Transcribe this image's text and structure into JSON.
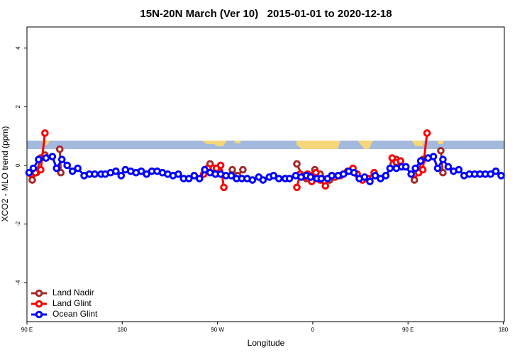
{
  "chart_data": {
    "type": "line",
    "title": "15N-20N March (Ver 10)   2015-01-01 to 2020-12-18",
    "x_label": "Longitude",
    "y_label": "XCO2 - MLO trend (ppm)",
    "xlim": [
      90,
      541
    ],
    "ylim": [
      -5.33,
      4.72
    ],
    "xticks": [
      {
        "value": 90,
        "label": "90 E"
      },
      180,
      {
        "value": 270,
        "label": "90 W"
      },
      {
        "value": 360,
        "label": "0"
      },
      {
        "value": 450,
        "label": "90 E"
      },
      {
        "value": 540,
        "label": "180"
      }
    ],
    "yticks": [
      -4,
      -2,
      0,
      2,
      4
    ],
    "legend": "bottom-left",
    "series": [
      {
        "name": "Land Nadir",
        "color": "#a52a2a",
        "x": [
          95,
          99,
          103,
          107,
          null,
          121,
          122,
          null,
          263,
          268,
          272,
          null,
          284,
          289,
          294,
          null,
          345,
          350,
          354,
          362,
          367,
          376,
          null,
          436,
          439,
          null,
          456,
          464,
          null,
          481,
          483
        ],
        "values": [
          -0.5,
          -0.25,
          0.25,
          0.35,
          null,
          0.55,
          -0.25,
          null,
          0.05,
          -0.1,
          -0.2,
          null,
          -0.15,
          -0.35,
          -0.15,
          null,
          0.05,
          -0.35,
          -0.45,
          -0.15,
          -0.3,
          -0.5,
          null,
          0.05,
          0.2,
          null,
          -0.5,
          0.2,
          null,
          0.5,
          -0.25
        ]
      },
      {
        "name": "Land Glint",
        "color": "#ff0000",
        "x": [
          94,
          98,
          103,
          107,
          null,
          257,
          261,
          266,
          269,
          273,
          276,
          null,
          345,
          348,
          352,
          355,
          359,
          363,
          367,
          372,
          378,
          381,
          386,
          389,
          393,
          398,
          402,
          407,
          412,
          418,
          null,
          435,
          439,
          443,
          null,
          456,
          460,
          464,
          468
        ],
        "values": [
          -0.3,
          -0.25,
          -0.15,
          1.1,
          null,
          -0.3,
          -0.1,
          -0.1,
          -0.1,
          0,
          -0.75,
          null,
          -0.75,
          -0.3,
          -0.4,
          -0.3,
          -0.55,
          -0.25,
          -0.5,
          -0.7,
          -0.35,
          -0.4,
          -0.35,
          -0.3,
          -0.2,
          -0.1,
          -0.3,
          -0.5,
          -0.45,
          -0.25,
          null,
          0.25,
          0.1,
          0.15,
          null,
          -0.3,
          -0.25,
          -0.15,
          1.1
        ]
      },
      {
        "name": "Ocean Glint",
        "color": "#0000ff",
        "x": [
          92,
          96,
          101,
          108,
          114,
          118,
          123,
          128,
          133,
          138,
          144,
          149,
          154,
          160,
          164,
          169,
          174,
          179,
          183,
          188,
          193,
          198,
          203,
          208,
          213,
          218,
          223,
          228,
          233,
          238,
          243,
          248,
          253,
          258,
          263,
          268,
          273,
          278,
          283,
          288,
          293,
          298,
          303,
          309,
          313,
          319,
          323,
          328,
          334,
          338,
          344,
          349,
          354,
          358,
          364,
          368,
          374,
          378,
          384,
          389,
          394,
          399,
          404,
          409,
          414,
          419,
          424,
          429,
          433,
          439,
          444,
          448,
          453,
          457,
          462,
          469,
          474,
          478,
          483,
          488,
          493,
          498,
          503,
          508,
          513,
          518,
          523,
          528,
          533,
          538
        ],
        "values": [
          -0.25,
          -0.1,
          0.2,
          0.25,
          0.3,
          -0.1,
          0.2,
          0,
          -0.2,
          -0.1,
          -0.35,
          -0.3,
          -0.3,
          -0.3,
          -0.3,
          -0.25,
          -0.2,
          -0.35,
          -0.15,
          -0.2,
          -0.25,
          -0.2,
          -0.3,
          -0.2,
          -0.2,
          -0.25,
          -0.3,
          -0.35,
          -0.3,
          -0.45,
          -0.45,
          -0.35,
          -0.45,
          -0.15,
          -0.25,
          -0.3,
          -0.3,
          -0.35,
          -0.35,
          -0.45,
          -0.45,
          -0.45,
          -0.5,
          -0.4,
          -0.5,
          -0.4,
          -0.35,
          -0.45,
          -0.45,
          -0.45,
          -0.35,
          -0.4,
          -0.35,
          -0.4,
          -0.45,
          -0.45,
          -0.45,
          -0.35,
          -0.35,
          -0.3,
          -0.2,
          -0.25,
          -0.45,
          -0.4,
          -0.55,
          -0.35,
          -0.45,
          -0.35,
          -0.1,
          -0.1,
          -0.05,
          -0.05,
          -0.3,
          -0.1,
          0.15,
          0.25,
          0.3,
          -0.1,
          0.2,
          -0.05,
          -0.2,
          -0.15,
          -0.35,
          -0.3,
          -0.3,
          -0.3,
          -0.3,
          -0.3,
          -0.2,
          -0.35
        ]
      }
    ]
  }
}
